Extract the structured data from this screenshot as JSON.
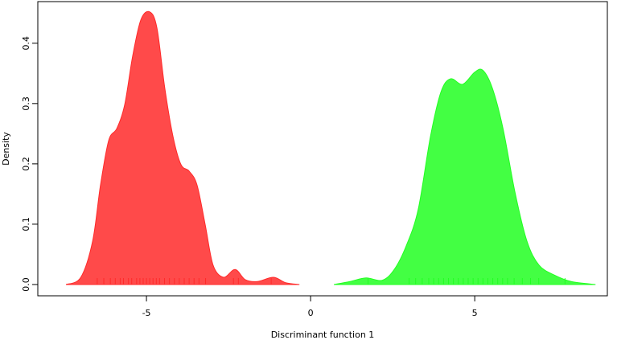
{
  "chart_data": {
    "type": "density",
    "x_label": "Discriminant function 1",
    "y_label": "Density",
    "xlim": [
      -8.31,
      9.04
    ],
    "ylim": [
      -0.0187,
      0.469
    ],
    "xticks": [
      -5,
      0,
      5
    ],
    "yticks": [
      {
        "value": 0,
        "label": "0.0"
      },
      0.1,
      0.2,
      0.3,
      0.4
    ],
    "series": [
      {
        "color": "#ff2a2a",
        "x": [
          -7.45,
          -7.0,
          -6.64,
          -6.4,
          -6.15,
          -5.9,
          -5.66,
          -5.42,
          -5.17,
          -4.9,
          -4.68,
          -4.44,
          -4.19,
          -3.95,
          -3.7,
          -3.46,
          -3.21,
          -2.97,
          -2.65,
          -2.3,
          -1.99,
          -1.62,
          -1.13,
          -0.76,
          -0.34
        ],
        "values": [
          0,
          0.012,
          0.072,
          0.165,
          0.239,
          0.259,
          0.299,
          0.379,
          0.439,
          0.452,
          0.425,
          0.325,
          0.245,
          0.199,
          0.188,
          0.165,
          0.099,
          0.032,
          0.012,
          0.025,
          0.008,
          0.005,
          0.012,
          0.003,
          0
        ],
        "rug": [
          -6.5,
          -6.3,
          -6.1,
          -5.95,
          -5.8,
          -5.7,
          -5.55,
          -5.45,
          -5.3,
          -5.2,
          -5.1,
          -5.0,
          -4.9,
          -4.8,
          -4.7,
          -4.6,
          -4.45,
          -4.3,
          -4.15,
          -4.0,
          -3.85,
          -3.7,
          -3.55,
          -3.4,
          -3.2,
          -2.35,
          -2.2,
          -1.2
        ]
      },
      {
        "color": "#22ff22",
        "x": [
          0.71,
          1.2,
          1.69,
          2.18,
          2.55,
          2.92,
          3.28,
          3.65,
          3.97,
          4.26,
          4.63,
          5.0,
          5.25,
          5.54,
          5.86,
          6.23,
          6.59,
          6.96,
          7.45,
          7.94,
          8.68
        ],
        "values": [
          0,
          0.005,
          0.011,
          0.007,
          0.025,
          0.065,
          0.125,
          0.245,
          0.319,
          0.341,
          0.332,
          0.352,
          0.355,
          0.325,
          0.259,
          0.152,
          0.072,
          0.032,
          0.015,
          0.005,
          0
        ],
        "rug": [
          1.75,
          3.0,
          3.2,
          3.4,
          3.6,
          3.75,
          3.9,
          4.05,
          4.2,
          4.35,
          4.5,
          4.65,
          4.8,
          4.95,
          5.1,
          5.25,
          5.4,
          5.55,
          5.7,
          5.85,
          6.0,
          6.2,
          6.45,
          6.7,
          6.95,
          7.75
        ]
      }
    ]
  }
}
